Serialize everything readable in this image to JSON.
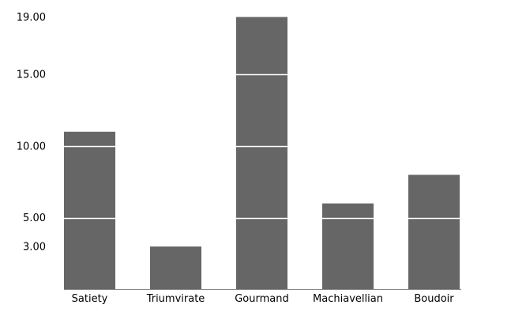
{
  "chart_data": {
    "type": "bar",
    "categories": [
      "Satiety",
      "Triumvirate",
      "Gourmand",
      "Machiavellian",
      "Boudoir"
    ],
    "values": [
      11,
      3,
      19,
      6,
      8
    ],
    "yticks": [
      3,
      5,
      10,
      15,
      19
    ],
    "ytick_labels": [
      "3.00",
      "5.00",
      "10.00",
      "15.00",
      "19.00"
    ],
    "ylim": [
      0,
      19
    ],
    "grid": "horizontal white lines drawn over bars",
    "legend": "none",
    "title": "",
    "xlabel": "",
    "ylabel": ""
  },
  "colors": {
    "bar": "#666666",
    "gridline": "#ffffff",
    "axis": "#888888",
    "background": "#ffffff"
  }
}
